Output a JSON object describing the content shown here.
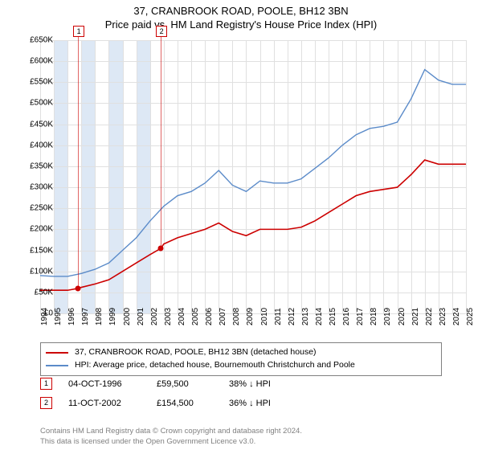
{
  "title_line1": "37, CRANBROOK ROAD, POOLE, BH12 3BN",
  "title_line2": "Price paid vs. HM Land Registry's House Price Index (HPI)",
  "chart": {
    "type": "line",
    "background_color": "#ffffff",
    "grid_color": "#e0e0e0",
    "band_color": "#dde8f5",
    "xlim": [
      1994,
      2025
    ],
    "ylim": [
      0,
      650000
    ],
    "ytick_step": 50000,
    "ytick_labels": [
      "£0",
      "£50K",
      "£100K",
      "£150K",
      "£200K",
      "£250K",
      "£300K",
      "£350K",
      "£400K",
      "£450K",
      "£500K",
      "£550K",
      "£600K",
      "£650K"
    ],
    "xtick_step": 1,
    "xtick_labels": [
      "1994",
      "1995",
      "1996",
      "1997",
      "1998",
      "1999",
      "2000",
      "2001",
      "2002",
      "2003",
      "2004",
      "2005",
      "2006",
      "2007",
      "2008",
      "2009",
      "2010",
      "2011",
      "2012",
      "2013",
      "2014",
      "2015",
      "2016",
      "2017",
      "2018",
      "2019",
      "2020",
      "2021",
      "2022",
      "2023",
      "2024",
      "2025"
    ],
    "bands": [
      [
        1995,
        1996
      ],
      [
        1997,
        1998
      ],
      [
        1999,
        2000
      ],
      [
        2001,
        2002
      ]
    ],
    "series": [
      {
        "name": "price_paid",
        "color": "#cc0000",
        "width": 1.6,
        "points": [
          [
            1994,
            55000
          ],
          [
            1995,
            55000
          ],
          [
            1996,
            55000
          ],
          [
            1996.76,
            59500
          ],
          [
            1997,
            62000
          ],
          [
            1998,
            70000
          ],
          [
            1999,
            80000
          ],
          [
            2000,
            100000
          ],
          [
            2001,
            120000
          ],
          [
            2002,
            140000
          ],
          [
            2002.78,
            154500
          ],
          [
            2003,
            165000
          ],
          [
            2004,
            180000
          ],
          [
            2005,
            190000
          ],
          [
            2006,
            200000
          ],
          [
            2007,
            215000
          ],
          [
            2008,
            195000
          ],
          [
            2009,
            185000
          ],
          [
            2010,
            200000
          ],
          [
            2011,
            200000
          ],
          [
            2012,
            200000
          ],
          [
            2013,
            205000
          ],
          [
            2014,
            220000
          ],
          [
            2015,
            240000
          ],
          [
            2016,
            260000
          ],
          [
            2017,
            280000
          ],
          [
            2018,
            290000
          ],
          [
            2019,
            295000
          ],
          [
            2020,
            300000
          ],
          [
            2021,
            330000
          ],
          [
            2022,
            365000
          ],
          [
            2023,
            355000
          ],
          [
            2024,
            355000
          ],
          [
            2025,
            355000
          ]
        ]
      },
      {
        "name": "hpi",
        "color": "#5b8bc9",
        "width": 1.4,
        "points": [
          [
            1994,
            90000
          ],
          [
            1995,
            88000
          ],
          [
            1996,
            88000
          ],
          [
            1997,
            95000
          ],
          [
            1998,
            105000
          ],
          [
            1999,
            120000
          ],
          [
            2000,
            150000
          ],
          [
            2001,
            180000
          ],
          [
            2002,
            220000
          ],
          [
            2003,
            255000
          ],
          [
            2004,
            280000
          ],
          [
            2005,
            290000
          ],
          [
            2006,
            310000
          ],
          [
            2007,
            340000
          ],
          [
            2008,
            305000
          ],
          [
            2009,
            290000
          ],
          [
            2010,
            315000
          ],
          [
            2011,
            310000
          ],
          [
            2012,
            310000
          ],
          [
            2013,
            320000
          ],
          [
            2014,
            345000
          ],
          [
            2015,
            370000
          ],
          [
            2016,
            400000
          ],
          [
            2017,
            425000
          ],
          [
            2018,
            440000
          ],
          [
            2019,
            445000
          ],
          [
            2020,
            455000
          ],
          [
            2021,
            510000
          ],
          [
            2022,
            580000
          ],
          [
            2023,
            555000
          ],
          [
            2024,
            545000
          ],
          [
            2025,
            545000
          ]
        ]
      }
    ]
  },
  "markers": [
    {
      "num": "1",
      "x": 1996.76,
      "y": 59500,
      "date": "04-OCT-1996",
      "price": "£59,500",
      "hpi": "38% ↓ HPI"
    },
    {
      "num": "2",
      "x": 2002.78,
      "y": 154500,
      "date": "11-OCT-2002",
      "price": "£154,500",
      "hpi": "36% ↓ HPI"
    }
  ],
  "legend": {
    "series1_label": "37, CRANBROOK ROAD, POOLE, BH12 3BN (detached house)",
    "series1_color": "#cc0000",
    "series2_label": "HPI: Average price, detached house, Bournemouth Christchurch and Poole",
    "series2_color": "#5b8bc9"
  },
  "footer_line1": "Contains HM Land Registry data © Crown copyright and database right 2024.",
  "footer_line2": "This data is licensed under the Open Government Licence v3.0."
}
